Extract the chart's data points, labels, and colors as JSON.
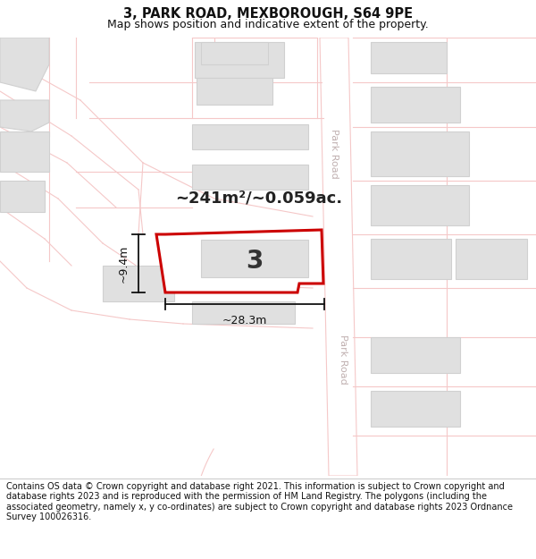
{
  "title": "3, PARK ROAD, MEXBOROUGH, S64 9PE",
  "subtitle": "Map shows position and indicative extent of the property.",
  "footer": "Contains OS data © Crown copyright and database right 2021. This information is subject to Crown copyright and database rights 2023 and is reproduced with the permission of HM Land Registry. The polygons (including the associated geometry, namely x, y co-ordinates) are subject to Crown copyright and database rights 2023 Ordnance Survey 100026316.",
  "area_label": "~241m²/~0.059ac.",
  "width_label": "~28.3m",
  "height_label": "~9.4m",
  "plot_number": "3",
  "road_color": "#f5c8c8",
  "building_fill": "#e0e0e0",
  "building_edge": "#d0d0d0",
  "highlight_fill": "#ffffff",
  "highlight_edge": "#cc0000",
  "road_label_color": "#c0b0b0",
  "dim_color": "#111111",
  "title_fontsize": 10.5,
  "subtitle_fontsize": 9,
  "footer_fontsize": 7.0,
  "area_fontsize": 13,
  "num_fontsize": 20
}
